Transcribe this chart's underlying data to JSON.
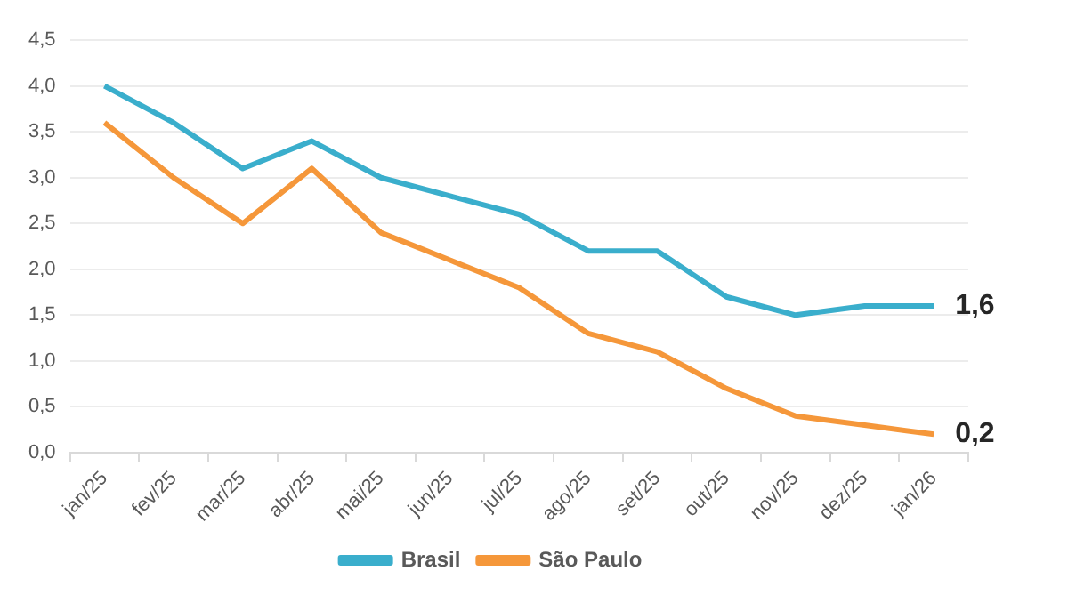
{
  "chart_data": {
    "type": "line",
    "categories": [
      "jan/25",
      "fev/25",
      "mar/25",
      "abr/25",
      "mai/25",
      "jun/25",
      "jul/25",
      "ago/25",
      "set/25",
      "out/25",
      "nov/25",
      "dez/25",
      "jan/26"
    ],
    "series": [
      {
        "name": "Brasil",
        "color": "#3aaecc",
        "values": [
          4.0,
          3.6,
          3.1,
          3.4,
          3.0,
          2.8,
          2.6,
          2.2,
          2.2,
          1.7,
          1.5,
          1.6,
          1.6
        ],
        "value_labels": [
          null,
          null,
          null,
          null,
          null,
          null,
          null,
          null,
          null,
          null,
          null,
          null,
          "1,6"
        ]
      },
      {
        "name": "São Paulo",
        "color": "#f5973a",
        "values": [
          3.6,
          3.0,
          2.5,
          3.1,
          2.4,
          2.1,
          1.8,
          1.3,
          1.1,
          0.7,
          0.4,
          0.3,
          0.2
        ],
        "value_labels": [
          null,
          null,
          null,
          null,
          null,
          null,
          null,
          null,
          null,
          null,
          null,
          null,
          "0,2"
        ]
      }
    ],
    "ylim": [
      0,
      4.5
    ],
    "yticks": [
      {
        "value": 0,
        "label": "0,0"
      },
      {
        "value": 0.5,
        "label": "0,5"
      },
      {
        "value": 1,
        "label": "1,0"
      },
      {
        "value": 1.5,
        "label": "1,5"
      },
      {
        "value": 2,
        "label": "2,0"
      },
      {
        "value": 2.5,
        "label": "2,5"
      },
      {
        "value": 3,
        "label": "3,0"
      },
      {
        "value": 3.5,
        "label": "3,5"
      },
      {
        "value": 4,
        "label": "4,0"
      },
      {
        "value": 4.5,
        "label": "4,5"
      }
    ],
    "grid": "y",
    "legend": "bottom",
    "marker": "none",
    "line_style": "solid"
  }
}
